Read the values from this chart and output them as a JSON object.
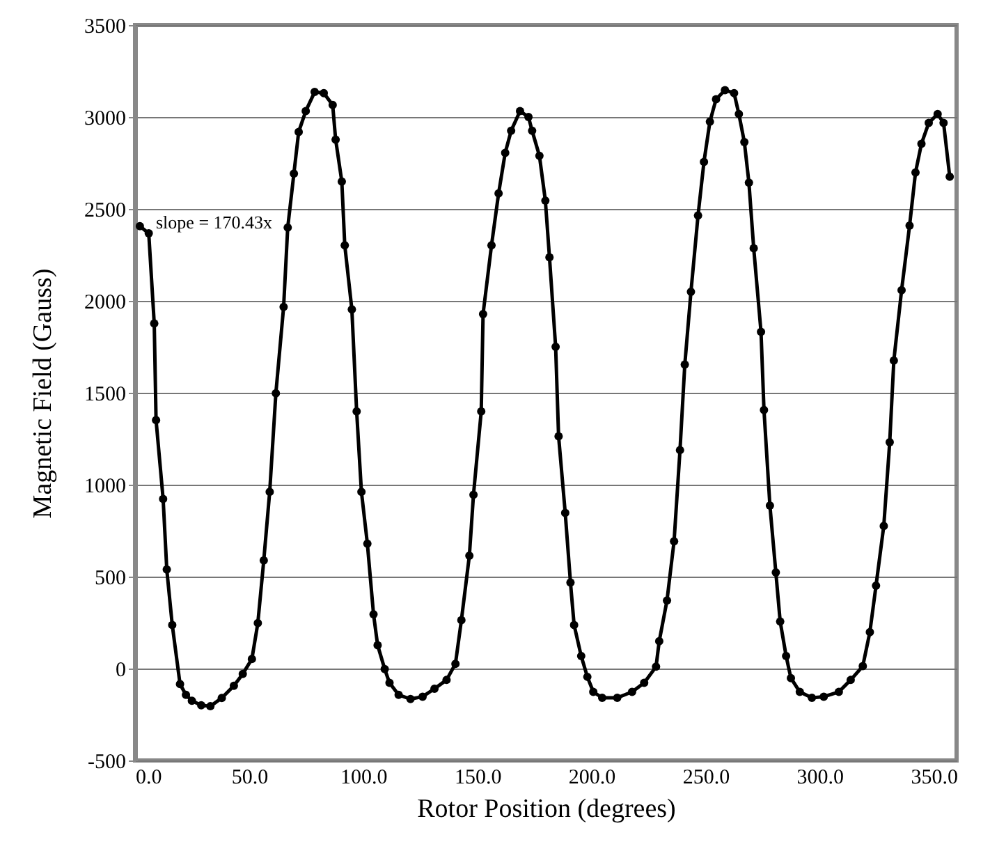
{
  "chart_data": {
    "type": "line",
    "xlabel": "Rotor Position (degrees)",
    "ylabel": "Magnetic Field (Gauss)",
    "annotations": [
      "slope = 170.43x"
    ],
    "xlim": [
      0,
      360
    ],
    "xticks": [
      {
        "value": 0,
        "label": "0.0"
      },
      {
        "value": 50,
        "label": "50.0"
      },
      {
        "value": 100,
        "label": "100.0"
      },
      {
        "value": 150,
        "label": "150.0"
      },
      {
        "value": 200,
        "label": "200.0"
      },
      {
        "value": 250,
        "label": "250.0"
      },
      {
        "value": 300,
        "label": "300.0"
      },
      {
        "value": 350,
        "label": "350.0"
      }
    ],
    "ylim": [
      -500,
      3500
    ],
    "yticks": [
      -500,
      0,
      500,
      1000,
      1500,
      2000,
      2500,
      3000,
      3500
    ],
    "grid": "y",
    "marker": "circle",
    "line_style": "solid",
    "series": [
      {
        "color": "#000000",
        "x": [
          2.1,
          6,
          8.4,
          9.2,
          12.3,
          13.9,
          16.3,
          19.7,
          22.3,
          24.9,
          29,
          33,
          38,
          43.3,
          47.2,
          51.2,
          53.8,
          56.4,
          59,
          61.7,
          65.1,
          66.9,
          69.6,
          71.7,
          74.8,
          78.7,
          82.7,
          86.6,
          87.9,
          90.6,
          91.9,
          95,
          97.1,
          99.2,
          101.8,
          104.5,
          106.3,
          109.4,
          111.5,
          115.5,
          120.7,
          126,
          131.2,
          136.5,
          140.4,
          143,
          146.5,
          148.3,
          151.7,
          152.5,
          156.2,
          159.3,
          162.2,
          164.8,
          168.7,
          172.4,
          174,
          177.2,
          179.8,
          181.6,
          184.3,
          185.6,
          188.5,
          190.8,
          192.4,
          195.5,
          198.2,
          200.8,
          204.7,
          211.3,
          217.8,
          223.1,
          228.3,
          229.7,
          233.1,
          236.2,
          238.8,
          240.9,
          243.6,
          246.7,
          249.3,
          251.9,
          254.6,
          258.5,
          262.5,
          264.6,
          267,
          269,
          271.1,
          274.3,
          275.6,
          278.2,
          280.8,
          282.7,
          285.3,
          287.4,
          291.3,
          296.6,
          301.8,
          308.4,
          313.6,
          318.9,
          322,
          324.7,
          328.1,
          330.7,
          332.5,
          335.9,
          339.4,
          342,
          344.6,
          347.8,
          351.7,
          354.3,
          357
        ],
        "values": [
          2406,
          2367,
          1877,
          1351,
          922,
          539,
          237,
          -84,
          -143,
          -175,
          -200,
          -205,
          -160,
          -94,
          -29,
          52,
          247,
          588,
          961,
          1497,
          1967,
          2399,
          2692,
          2919,
          3032,
          3136,
          3130,
          3065,
          2877,
          2649,
          2302,
          1954,
          1399,
          961,
          679,
          295,
          127,
          -3,
          -78,
          -143,
          -166,
          -153,
          -110,
          -62,
          26,
          263,
          614,
          945,
          1399,
          1928,
          2302,
          2584,
          2805,
          2925,
          3032,
          3000,
          2925,
          2789,
          2545,
          2237,
          1750,
          1263,
          847,
          468,
          237,
          68,
          -45,
          -127,
          -159,
          -159,
          -127,
          -78,
          10,
          149,
          370,
          692,
          1188,
          1653,
          2049,
          2464,
          2756,
          2974,
          3097,
          3146,
          3130,
          3016,
          2864,
          2643,
          2286,
          1831,
          1406,
          886,
          523,
          256,
          68,
          -52,
          -127,
          -159,
          -153,
          -127,
          -62,
          13,
          198,
          451,
          776,
          1231,
          1675,
          2058,
          2409,
          2698,
          2854,
          2968,
          3016,
          2968,
          2675
        ]
      }
    ]
  }
}
